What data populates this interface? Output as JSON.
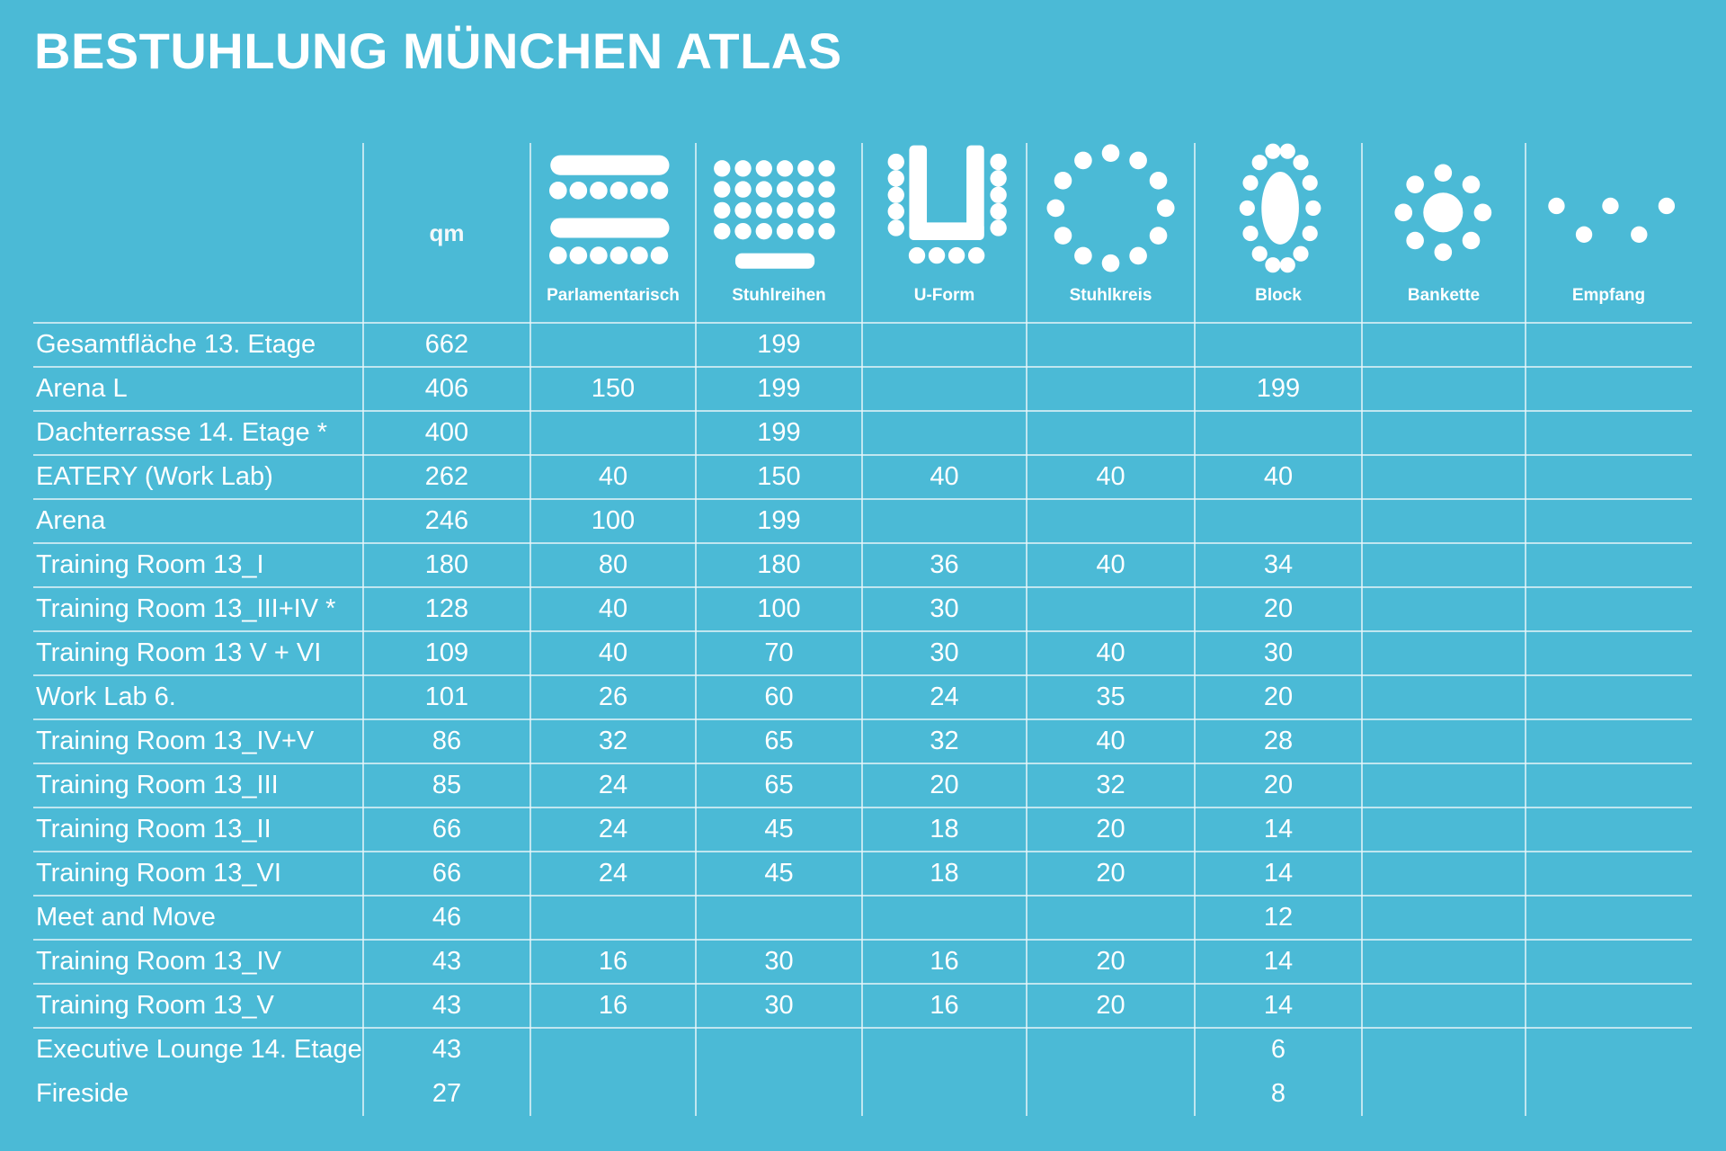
{
  "header": {
    "title": "BESTUHLUNG MÜNCHEN ATLAS"
  },
  "table": {
    "columns": [
      "qm",
      "Parlamentarisch",
      "Stuhlreihen",
      "U-Form",
      "Stuhlkreis",
      "Block",
      "Bankette",
      "Empfang"
    ],
    "rows": [
      {
        "name": "Gesamtfläche 13. Etage",
        "values": [
          662,
          null,
          199,
          null,
          null,
          null,
          null,
          null
        ]
      },
      {
        "name": "Arena L",
        "values": [
          406,
          150,
          199,
          null,
          null,
          199,
          null,
          null
        ]
      },
      {
        "name": "Dachterrasse 14. Etage *",
        "values": [
          400,
          null,
          199,
          null,
          null,
          null,
          null,
          null
        ]
      },
      {
        "name": "EATERY (Work Lab)",
        "values": [
          262,
          40,
          150,
          40,
          40,
          40,
          null,
          null
        ]
      },
      {
        "name": "Arena",
        "values": [
          246,
          100,
          199,
          null,
          null,
          null,
          null,
          null
        ]
      },
      {
        "name": "Training Room 13_I",
        "values": [
          180,
          80,
          180,
          36,
          40,
          34,
          null,
          null
        ]
      },
      {
        "name": "Training Room 13_III+IV *",
        "values": [
          128,
          40,
          100,
          30,
          null,
          20,
          null,
          null
        ]
      },
      {
        "name": "Training Room 13 V + VI",
        "values": [
          109,
          40,
          70,
          30,
          40,
          30,
          null,
          null
        ]
      },
      {
        "name": "Work Lab 6.",
        "values": [
          101,
          26,
          60,
          24,
          35,
          20,
          null,
          null
        ]
      },
      {
        "name": "Training Room 13_IV+V",
        "values": [
          86,
          32,
          65,
          32,
          40,
          28,
          null,
          null
        ]
      },
      {
        "name": "Training Room 13_III",
        "values": [
          85,
          24,
          65,
          20,
          32,
          20,
          null,
          null
        ]
      },
      {
        "name": "Training Room 13_II",
        "values": [
          66,
          24,
          45,
          18,
          20,
          14,
          null,
          null
        ]
      },
      {
        "name": "Training Room 13_VI",
        "values": [
          66,
          24,
          45,
          18,
          20,
          14,
          null,
          null
        ]
      },
      {
        "name": "Meet and Move",
        "values": [
          46,
          null,
          null,
          null,
          null,
          12,
          null,
          null
        ]
      },
      {
        "name": "Training Room 13_IV",
        "values": [
          43,
          16,
          30,
          16,
          20,
          14,
          null,
          null
        ]
      },
      {
        "name": "Training Room 13_V",
        "values": [
          43,
          16,
          30,
          16,
          20,
          14,
          null,
          null
        ]
      },
      {
        "name": "Executive Lounge 14. Etage",
        "values": [
          43,
          null,
          null,
          null,
          null,
          6,
          null,
          null
        ]
      },
      {
        "name": "Fireside",
        "values": [
          27,
          null,
          null,
          null,
          null,
          8,
          null,
          null
        ]
      }
    ]
  }
}
